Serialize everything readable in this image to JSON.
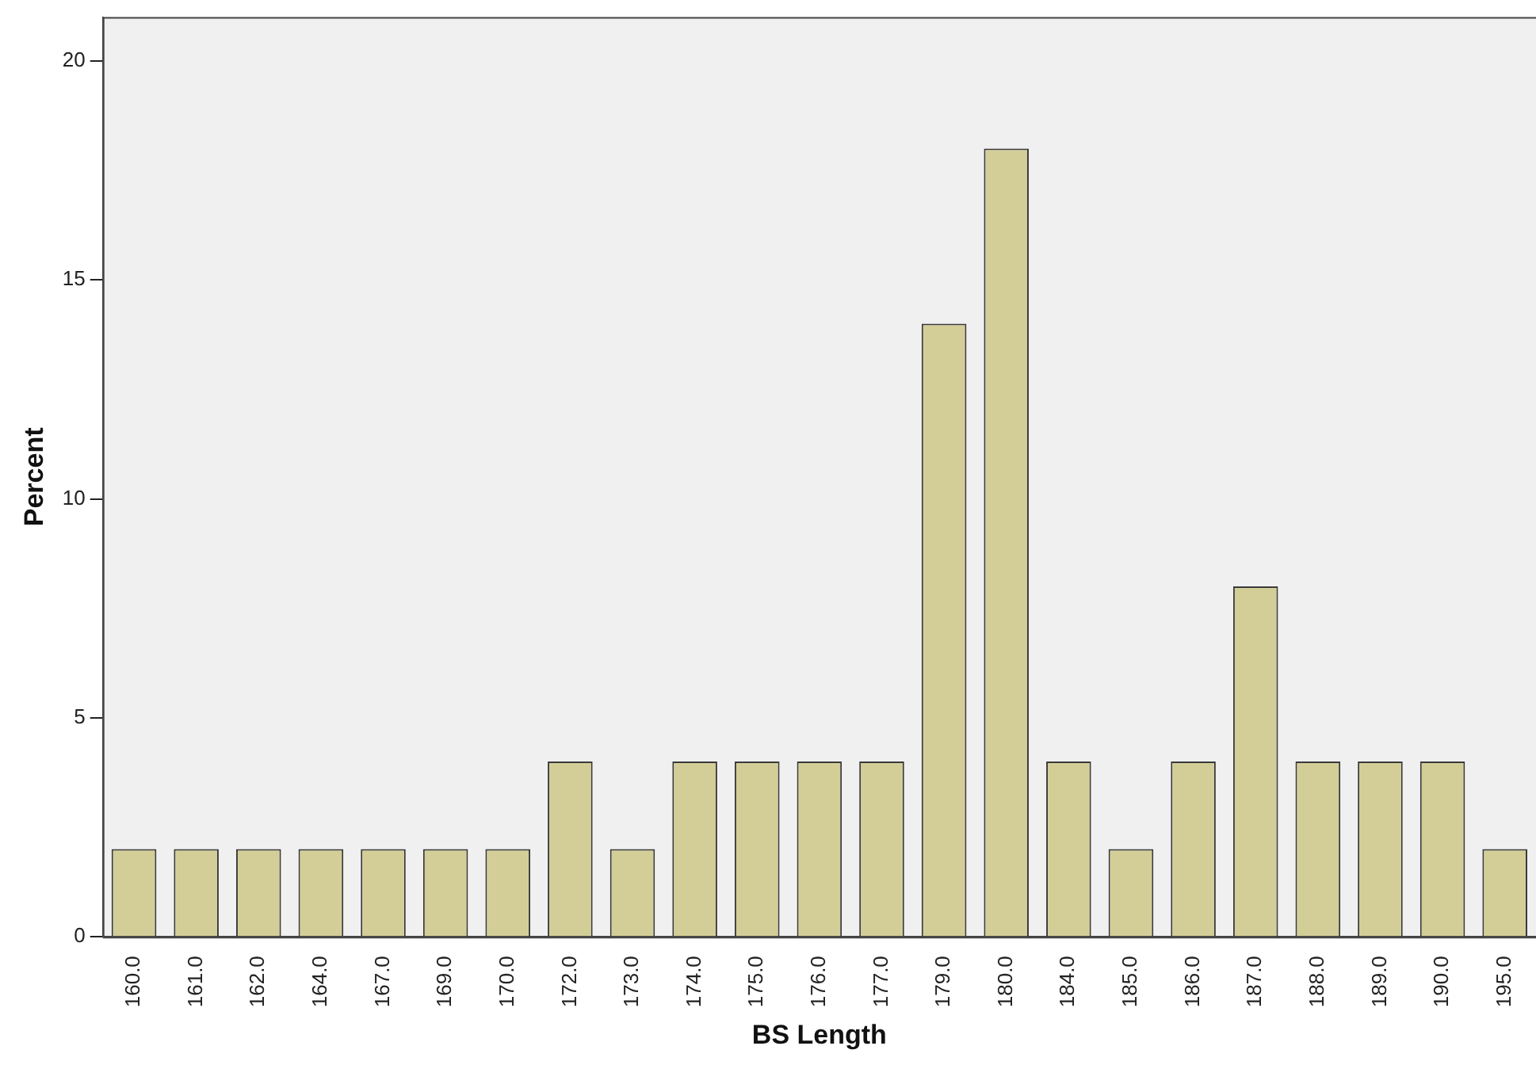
{
  "chart_data": {
    "type": "bar",
    "xlabel": "BS Length",
    "ylabel": "Percent",
    "categories": [
      "160.0",
      "161.0",
      "162.0",
      "164.0",
      "167.0",
      "169.0",
      "170.0",
      "172.0",
      "173.0",
      "174.0",
      "175.0",
      "176.0",
      "177.0",
      "179.0",
      "180.0",
      "184.0",
      "185.0",
      "186.0",
      "187.0",
      "188.0",
      "189.0",
      "190.0",
      "195.0"
    ],
    "values": [
      2,
      2,
      2,
      2,
      2,
      2,
      2,
      4,
      2,
      4,
      4,
      4,
      4,
      14,
      18,
      4,
      2,
      4,
      8,
      4,
      4,
      4,
      2
    ],
    "color": "#d3ce97",
    "ylim": [
      0,
      21
    ],
    "yticks": [
      0,
      5,
      10,
      15,
      20
    ],
    "grid": false,
    "legend": false
  }
}
